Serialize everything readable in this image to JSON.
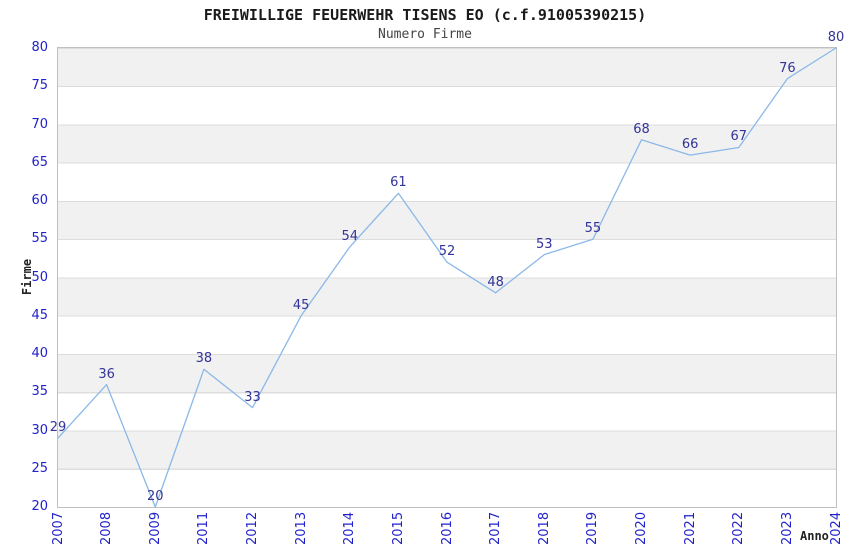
{
  "header": {
    "title": "FREIWILLIGE FEUERWEHR TISENS EO (c.f.91005390215)",
    "subtitle": "Numero Firme"
  },
  "chart_data": {
    "type": "line",
    "x_categories": [
      "2007",
      "2008",
      "2009",
      "2011",
      "2012",
      "2013",
      "2014",
      "2015",
      "2016",
      "2017",
      "2018",
      "2019",
      "2020",
      "2021",
      "2022",
      "2023",
      "2024"
    ],
    "values": [
      29,
      36,
      20,
      38,
      33,
      45,
      54,
      61,
      52,
      48,
      53,
      55,
      68,
      66,
      67,
      76,
      80
    ],
    "xlabel": "Anno",
    "ylabel": "Firme",
    "ylim": [
      20,
      80
    ],
    "ytick_step": 5,
    "legend": "none",
    "grid": "horizontal-bands-every-5",
    "colors": {
      "line": "#8bb8e8",
      "point_label": "#333399",
      "tick_label": "#2222cc",
      "band": "#f1f1f1",
      "gridline": "#dddddd",
      "plot_border": "#c0c0c0",
      "title": "#1a1a1a",
      "subtitle": "#444444",
      "axis_label": "#222222"
    }
  }
}
